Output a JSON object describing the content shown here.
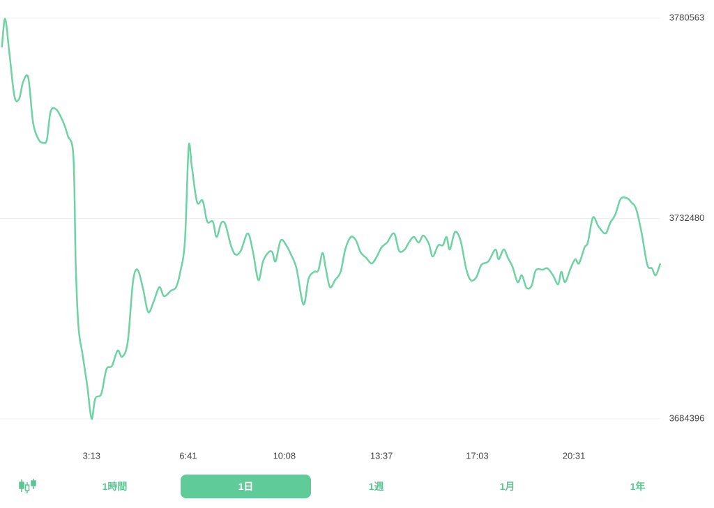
{
  "chart_data": {
    "type": "line",
    "x": [
      0,
      7,
      16,
      27,
      37,
      46,
      57,
      67,
      79,
      90,
      97,
      105,
      117,
      132,
      142,
      154,
      159,
      165,
      174,
      184,
      193,
      201,
      214,
      225,
      237,
      249,
      259,
      271,
      282,
      292,
      304,
      315,
      327,
      339,
      349,
      364,
      375,
      384,
      394,
      402,
      409,
      420,
      432,
      442,
      454,
      462,
      472,
      481,
      492,
      502,
      514,
      529,
      540,
      552,
      562,
      574,
      582,
      589,
      600,
      612,
      622,
      634,
      649,
      660,
      672,
      681,
      690,
      697,
      706,
      717,
      729,
      739,
      751,
      762,
      772,
      784,
      796,
      807,
      817,
      829,
      844,
      855,
      867,
      874,
      886,
      897,
      907,
      919,
      927,
      939,
      949,
      957,
      964,
      975,
      987,
      999,
      1009,
      1021,
      1032,
      1047,
      1062,
      1069,
      1080,
      1089,
      1099,
      1110,
      1119,
      1129,
      1140,
      1149,
      1164,
      1174,
      1186,
      1197,
      1204,
      1212,
      1224,
      1234,
      1242,
      1254,
      1261,
      1272,
      1284,
      1299,
      1309,
      1320,
      1332,
      1347,
      1354,
      1365,
      1377,
      1389,
      1399,
      1407,
      1417
    ],
    "series": [
      {
        "color": "#6ed3a3",
        "values": [
          3773539,
          3780396,
          3772368,
          3761831,
          3761162,
          3765343,
          3766179,
          3755643,
          3751461,
          3750625,
          3751461,
          3758151,
          3758653,
          3755643,
          3752298,
          3747280,
          3721356,
          3706304,
          3699614,
          3692088,
          3684394,
          3689244,
          3690415,
          3696269,
          3697105,
          3700785,
          3699279,
          3702959,
          3717175,
          3720186,
          3715503,
          3709983,
          3712659,
          3716004,
          3713830,
          3715168,
          3716004,
          3719684,
          3727210,
          3749622,
          3744771,
          3736409,
          3736743,
          3731726,
          3731726,
          3728046,
          3731391,
          3731057,
          3726374,
          3723865,
          3724701,
          3728883,
          3724701,
          3717677,
          3722193,
          3724367,
          3724367,
          3722193,
          3727210,
          3726039,
          3723865,
          3720520,
          3711823,
          3718011,
          3719684,
          3720018,
          3724200,
          3720520,
          3716004,
          3717677,
          3719684,
          3725036,
          3728046,
          3727210,
          3724367,
          3723029,
          3721691,
          3723363,
          3725538,
          3726708,
          3728883,
          3724701,
          3725036,
          3726374,
          3728046,
          3726708,
          3728381,
          3726374,
          3723363,
          3726039,
          3726039,
          3728046,
          3725036,
          3729217,
          3727210,
          3720520,
          3717677,
          3718346,
          3721356,
          3722193,
          3725036,
          3722694,
          3725036,
          3723029,
          3720855,
          3717175,
          3718848,
          3715837,
          3716339,
          3720018,
          3720186,
          3720520,
          3718848,
          3716673,
          3719684,
          3717175,
          3720520,
          3722694,
          3721691,
          3725538,
          3726708,
          3732729,
          3730555,
          3728883,
          3731391,
          3733398,
          3737245,
          3737245,
          3736409,
          3734736,
          3728883,
          3721356,
          3720520,
          3718848,
          3721691
        ]
      }
    ],
    "xlim": [
      -4,
      1417
    ],
    "xticks": [
      {
        "value": 193,
        "label": "3:13"
      },
      {
        "value": 401,
        "label": "6:41"
      },
      {
        "value": 608,
        "label": "10:08"
      },
      {
        "value": 817,
        "label": "13:37"
      },
      {
        "value": 1023,
        "label": "17:03"
      },
      {
        "value": 1231,
        "label": "20:31"
      }
    ],
    "ylim": [
      3684396,
      3780563
    ],
    "yticks": [
      3684396,
      3732480,
      3780563
    ],
    "grid": true
  },
  "tabs": [
    "1時間",
    "1日",
    "1週",
    "1月",
    "1年"
  ],
  "selected_tab": 1
}
